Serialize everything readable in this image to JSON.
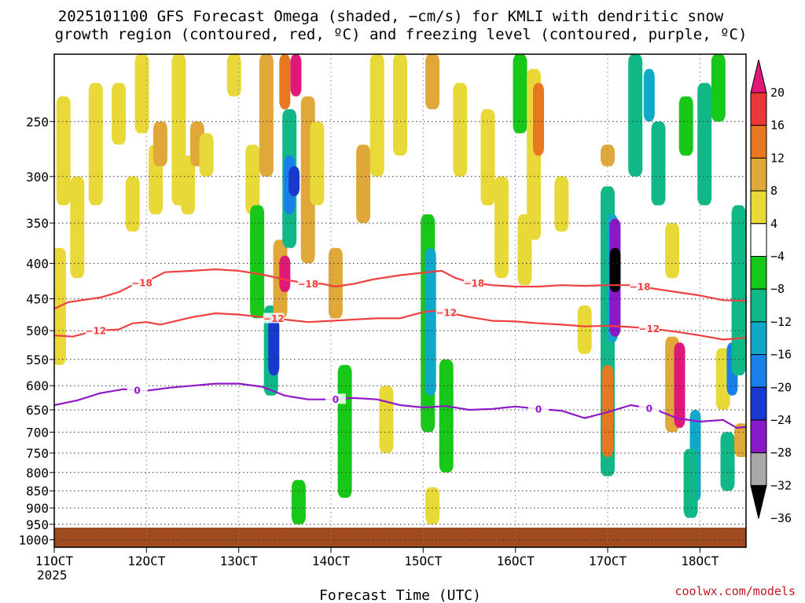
{
  "chart_data": {
    "type": "heatmap",
    "title_lines": [
      "2025101100 GFS Forecast Omega (shaded, −cm/s) for KMLI with dendritic snow",
      "growth region (contoured, red, ºC) and freezing level (contoured, purple, ºC)"
    ],
    "xlabel": "Forecast Time (UTC)",
    "ylabel": "",
    "credit": "coolwx.com/models",
    "x_ticks": [
      {
        "day": 11,
        "label": "11OCT"
      },
      {
        "day": 12,
        "label": "12OCT"
      },
      {
        "day": 13,
        "label": "13OCT"
      },
      {
        "day": 14,
        "label": "14OCT"
      },
      {
        "day": 15,
        "label": "15OCT"
      },
      {
        "day": 16,
        "label": "16OCT"
      },
      {
        "day": 17,
        "label": "17OCT"
      },
      {
        "day": 18,
        "label": "18OCT"
      }
    ],
    "x_year_label": "2025",
    "xlim": [
      11,
      18.5
    ],
    "y_ticks": [
      250,
      300,
      350,
      400,
      450,
      500,
      550,
      600,
      650,
      700,
      750,
      800,
      850,
      900,
      950,
      1000
    ],
    "ylim": [
      200,
      1025
    ],
    "y_scale": "log",
    "y_inverted": true,
    "grid": "dotted",
    "colorbar": {
      "labels": [
        "20",
        "16",
        "12",
        "8",
        "4",
        "−4",
        "−8",
        "−12",
        "−16",
        "−20",
        "−24",
        "−28",
        "−32",
        "−36"
      ],
      "colors": [
        "#e01878",
        "#e83838",
        "#e87820",
        "#e0a838",
        "#e8d838",
        "#ffffff",
        "#18c818",
        "#10b888",
        "#10a8c8",
        "#1880e8",
        "#1838d0",
        "#8818c8",
        "#a8a8a8",
        "#000000"
      ]
    },
    "shading": [
      {
        "day": 11.05,
        "p_top": 380,
        "p_bot": 560,
        "value": 5
      },
      {
        "day": 11.1,
        "p_top": 230,
        "p_bot": 330,
        "value": 5
      },
      {
        "day": 11.25,
        "p_top": 300,
        "p_bot": 420,
        "value": 5
      },
      {
        "day": 11.45,
        "p_top": 220,
        "p_bot": 330,
        "value": 5
      },
      {
        "day": 11.7,
        "p_top": 220,
        "p_bot": 270,
        "value": 5
      },
      {
        "day": 11.85,
        "p_top": 300,
        "p_bot": 360,
        "value": 5
      },
      {
        "day": 11.95,
        "p_top": 200,
        "p_bot": 260,
        "value": 5
      },
      {
        "day": 12.1,
        "p_top": 270,
        "p_bot": 340,
        "value": 5
      },
      {
        "day": 12.15,
        "p_top": 250,
        "p_bot": 290,
        "value": 9
      },
      {
        "day": 12.35,
        "p_top": 200,
        "p_bot": 330,
        "value": 5
      },
      {
        "day": 12.45,
        "p_top": 280,
        "p_bot": 340,
        "value": 5
      },
      {
        "day": 12.55,
        "p_top": 250,
        "p_bot": 290,
        "value": 9
      },
      {
        "day": 12.65,
        "p_top": 260,
        "p_bot": 300,
        "value": 5
      },
      {
        "day": 12.95,
        "p_top": 200,
        "p_bot": 230,
        "value": 5
      },
      {
        "day": 13.15,
        "p_top": 270,
        "p_bot": 340,
        "value": 5
      },
      {
        "day": 13.2,
        "p_top": 330,
        "p_bot": 480,
        "value": -6
      },
      {
        "day": 13.3,
        "p_top": 200,
        "p_bot": 300,
        "value": 9
      },
      {
        "day": 13.35,
        "p_top": 460,
        "p_bot": 620,
        "value": -10
      },
      {
        "day": 13.38,
        "p_top": 480,
        "p_bot": 580,
        "value": -20
      },
      {
        "day": 13.45,
        "p_top": 370,
        "p_bot": 480,
        "value": 9
      },
      {
        "day": 13.5,
        "p_top": 390,
        "p_bot": 440,
        "value": 22
      },
      {
        "day": 13.55,
        "p_top": 240,
        "p_bot": 380,
        "value": -10
      },
      {
        "day": 13.55,
        "p_top": 280,
        "p_bot": 340,
        "value": -18
      },
      {
        "day": 13.6,
        "p_top": 290,
        "p_bot": 320,
        "value": -22
      },
      {
        "day": 13.5,
        "p_top": 200,
        "p_bot": 240,
        "value": 14
      },
      {
        "day": 13.62,
        "p_top": 200,
        "p_bot": 230,
        "value": 22
      },
      {
        "day": 13.75,
        "p_top": 230,
        "p_bot": 400,
        "value": 9
      },
      {
        "day": 13.65,
        "p_top": 820,
        "p_bot": 950,
        "value": -6
      },
      {
        "day": 13.85,
        "p_top": 250,
        "p_bot": 330,
        "value": 5
      },
      {
        "day": 14.05,
        "p_top": 380,
        "p_bot": 480,
        "value": 9
      },
      {
        "day": 14.15,
        "p_top": 560,
        "p_bot": 870,
        "value": -6
      },
      {
        "day": 14.35,
        "p_top": 270,
        "p_bot": 350,
        "value": 9
      },
      {
        "day": 14.5,
        "p_top": 200,
        "p_bot": 300,
        "value": 5
      },
      {
        "day": 14.6,
        "p_top": 600,
        "p_bot": 750,
        "value": 5
      },
      {
        "day": 14.75,
        "p_top": 200,
        "p_bot": 280,
        "value": 5
      },
      {
        "day": 15.05,
        "p_top": 340,
        "p_bot": 700,
        "value": -6
      },
      {
        "day": 15.08,
        "p_top": 380,
        "p_bot": 620,
        "value": -12
      },
      {
        "day": 15.1,
        "p_top": 840,
        "p_bot": 950,
        "value": 5
      },
      {
        "day": 15.1,
        "p_top": 200,
        "p_bot": 240,
        "value": 9
      },
      {
        "day": 15.25,
        "p_top": 550,
        "p_bot": 800,
        "value": -6
      },
      {
        "day": 15.4,
        "p_top": 220,
        "p_bot": 300,
        "value": 5
      },
      {
        "day": 15.7,
        "p_top": 240,
        "p_bot": 330,
        "value": 5
      },
      {
        "day": 15.85,
        "p_top": 300,
        "p_bot": 420,
        "value": 5
      },
      {
        "day": 16.05,
        "p_top": 200,
        "p_bot": 260,
        "value": -6
      },
      {
        "day": 16.2,
        "p_top": 210,
        "p_bot": 370,
        "value": 5
      },
      {
        "day": 16.25,
        "p_top": 220,
        "p_bot": 280,
        "value": 12
      },
      {
        "day": 16.5,
        "p_top": 300,
        "p_bot": 360,
        "value": 5
      },
      {
        "day": 16.1,
        "p_top": 340,
        "p_bot": 430,
        "value": 5
      },
      {
        "day": 16.75,
        "p_top": 460,
        "p_bot": 540,
        "value": 5
      },
      {
        "day": 17.0,
        "p_top": 310,
        "p_bot": 810,
        "value": -8
      },
      {
        "day": 17.05,
        "p_top": 340,
        "p_bot": 520,
        "value": -14
      },
      {
        "day": 17.08,
        "p_top": 345,
        "p_bot": 510,
        "value": -26
      },
      {
        "day": 17.08,
        "p_top": 380,
        "p_bot": 440,
        "value": -34
      },
      {
        "day": 17.0,
        "p_top": 560,
        "p_bot": 760,
        "value": 12
      },
      {
        "day": 17.0,
        "p_top": 270,
        "p_bot": 290,
        "value": 9
      },
      {
        "day": 17.3,
        "p_top": 200,
        "p_bot": 300,
        "value": -8
      },
      {
        "day": 17.45,
        "p_top": 210,
        "p_bot": 250,
        "value": -12
      },
      {
        "day": 17.55,
        "p_top": 250,
        "p_bot": 330,
        "value": -8
      },
      {
        "day": 17.7,
        "p_top": 350,
        "p_bot": 420,
        "value": 5
      },
      {
        "day": 17.7,
        "p_top": 510,
        "p_bot": 700,
        "value": 9
      },
      {
        "day": 17.78,
        "p_top": 520,
        "p_bot": 690,
        "value": 22
      },
      {
        "day": 17.85,
        "p_top": 230,
        "p_bot": 280,
        "value": -6
      },
      {
        "day": 17.95,
        "p_top": 650,
        "p_bot": 880,
        "value": -14
      },
      {
        "day": 17.9,
        "p_top": 740,
        "p_bot": 930,
        "value": -8
      },
      {
        "day": 18.05,
        "p_top": 220,
        "p_bot": 330,
        "value": -8
      },
      {
        "day": 18.2,
        "p_top": 200,
        "p_bot": 250,
        "value": -6
      },
      {
        "day": 18.25,
        "p_top": 530,
        "p_bot": 650,
        "value": 5
      },
      {
        "day": 18.3,
        "p_top": 700,
        "p_bot": 850,
        "value": -8
      },
      {
        "day": 18.35,
        "p_top": 520,
        "p_bot": 620,
        "value": -18
      },
      {
        "day": 18.42,
        "p_top": 330,
        "p_bot": 580,
        "value": -10
      },
      {
        "day": 18.45,
        "p_top": 680,
        "p_bot": 760,
        "value": 9
      }
    ],
    "series": [
      {
        "name": "−18",
        "color": "#ee4040",
        "label_days": [
          11.95,
          13.75,
          15.55,
          17.35
        ],
        "points": [
          [
            11.0,
            465
          ],
          [
            11.15,
            455
          ],
          [
            11.5,
            448
          ],
          [
            11.7,
            440
          ],
          [
            11.85,
            430
          ],
          [
            12.0,
            425
          ],
          [
            12.2,
            412
          ],
          [
            12.5,
            410
          ],
          [
            12.75,
            408
          ],
          [
            13.0,
            410
          ],
          [
            13.25,
            415
          ],
          [
            13.5,
            422
          ],
          [
            13.75,
            428
          ],
          [
            13.9,
            428
          ],
          [
            14.05,
            432
          ],
          [
            14.25,
            428
          ],
          [
            14.45,
            422
          ],
          [
            14.75,
            416
          ],
          [
            15.05,
            412
          ],
          [
            15.2,
            410
          ],
          [
            15.35,
            420
          ],
          [
            15.5,
            426
          ],
          [
            15.75,
            430
          ],
          [
            16.0,
            432
          ],
          [
            16.25,
            432
          ],
          [
            16.5,
            430
          ],
          [
            16.75,
            431
          ],
          [
            17.0,
            430
          ],
          [
            17.25,
            430
          ],
          [
            17.5,
            435
          ],
          [
            17.75,
            440
          ],
          [
            18.0,
            445
          ],
          [
            18.25,
            452
          ],
          [
            18.5,
            453
          ]
        ]
      },
      {
        "name": "−12",
        "color": "#ee4040",
        "label_days": [
          11.45,
          13.38,
          15.25,
          17.45
        ],
        "points": [
          [
            11.0,
            508
          ],
          [
            11.2,
            510
          ],
          [
            11.45,
            500
          ],
          [
            11.7,
            498
          ],
          [
            11.85,
            488
          ],
          [
            12.0,
            486
          ],
          [
            12.15,
            490
          ],
          [
            12.5,
            478
          ],
          [
            12.75,
            472
          ],
          [
            13.0,
            474
          ],
          [
            13.25,
            478
          ],
          [
            13.5,
            482
          ],
          [
            13.75,
            486
          ],
          [
            14.0,
            484
          ],
          [
            14.25,
            482
          ],
          [
            14.5,
            480
          ],
          [
            14.75,
            480
          ],
          [
            15.0,
            470
          ],
          [
            15.15,
            468
          ],
          [
            15.3,
            472
          ],
          [
            15.5,
            478
          ],
          [
            15.75,
            484
          ],
          [
            16.0,
            485
          ],
          [
            16.25,
            488
          ],
          [
            16.5,
            490
          ],
          [
            16.75,
            493
          ],
          [
            17.0,
            492
          ],
          [
            17.25,
            494
          ],
          [
            17.5,
            497
          ],
          [
            17.75,
            502
          ],
          [
            18.0,
            508
          ],
          [
            18.25,
            515
          ],
          [
            18.5,
            512
          ]
        ]
      },
      {
        "name": "0",
        "color": "#9018c8",
        "label_days": [
          11.9,
          14.05,
          16.25,
          17.45
        ],
        "points": [
          [
            11.0,
            640
          ],
          [
            11.25,
            630
          ],
          [
            11.5,
            615
          ],
          [
            11.75,
            607
          ],
          [
            12.0,
            610
          ],
          [
            12.25,
            604
          ],
          [
            12.5,
            600
          ],
          [
            12.75,
            596
          ],
          [
            13.0,
            596
          ],
          [
            13.25,
            602
          ],
          [
            13.5,
            620
          ],
          [
            13.75,
            628
          ],
          [
            14.0,
            628
          ],
          [
            14.25,
            625
          ],
          [
            14.5,
            628
          ],
          [
            14.75,
            640
          ],
          [
            15.0,
            645
          ],
          [
            15.25,
            642
          ],
          [
            15.5,
            650
          ],
          [
            15.75,
            648
          ],
          [
            16.0,
            643
          ],
          [
            16.25,
            648
          ],
          [
            16.5,
            652
          ],
          [
            16.75,
            668
          ],
          [
            17.0,
            655
          ],
          [
            17.25,
            640
          ],
          [
            17.5,
            648
          ],
          [
            17.75,
            668
          ],
          [
            18.0,
            676
          ],
          [
            18.25,
            672
          ],
          [
            18.4,
            690
          ],
          [
            18.5,
            688
          ]
        ]
      }
    ]
  }
}
